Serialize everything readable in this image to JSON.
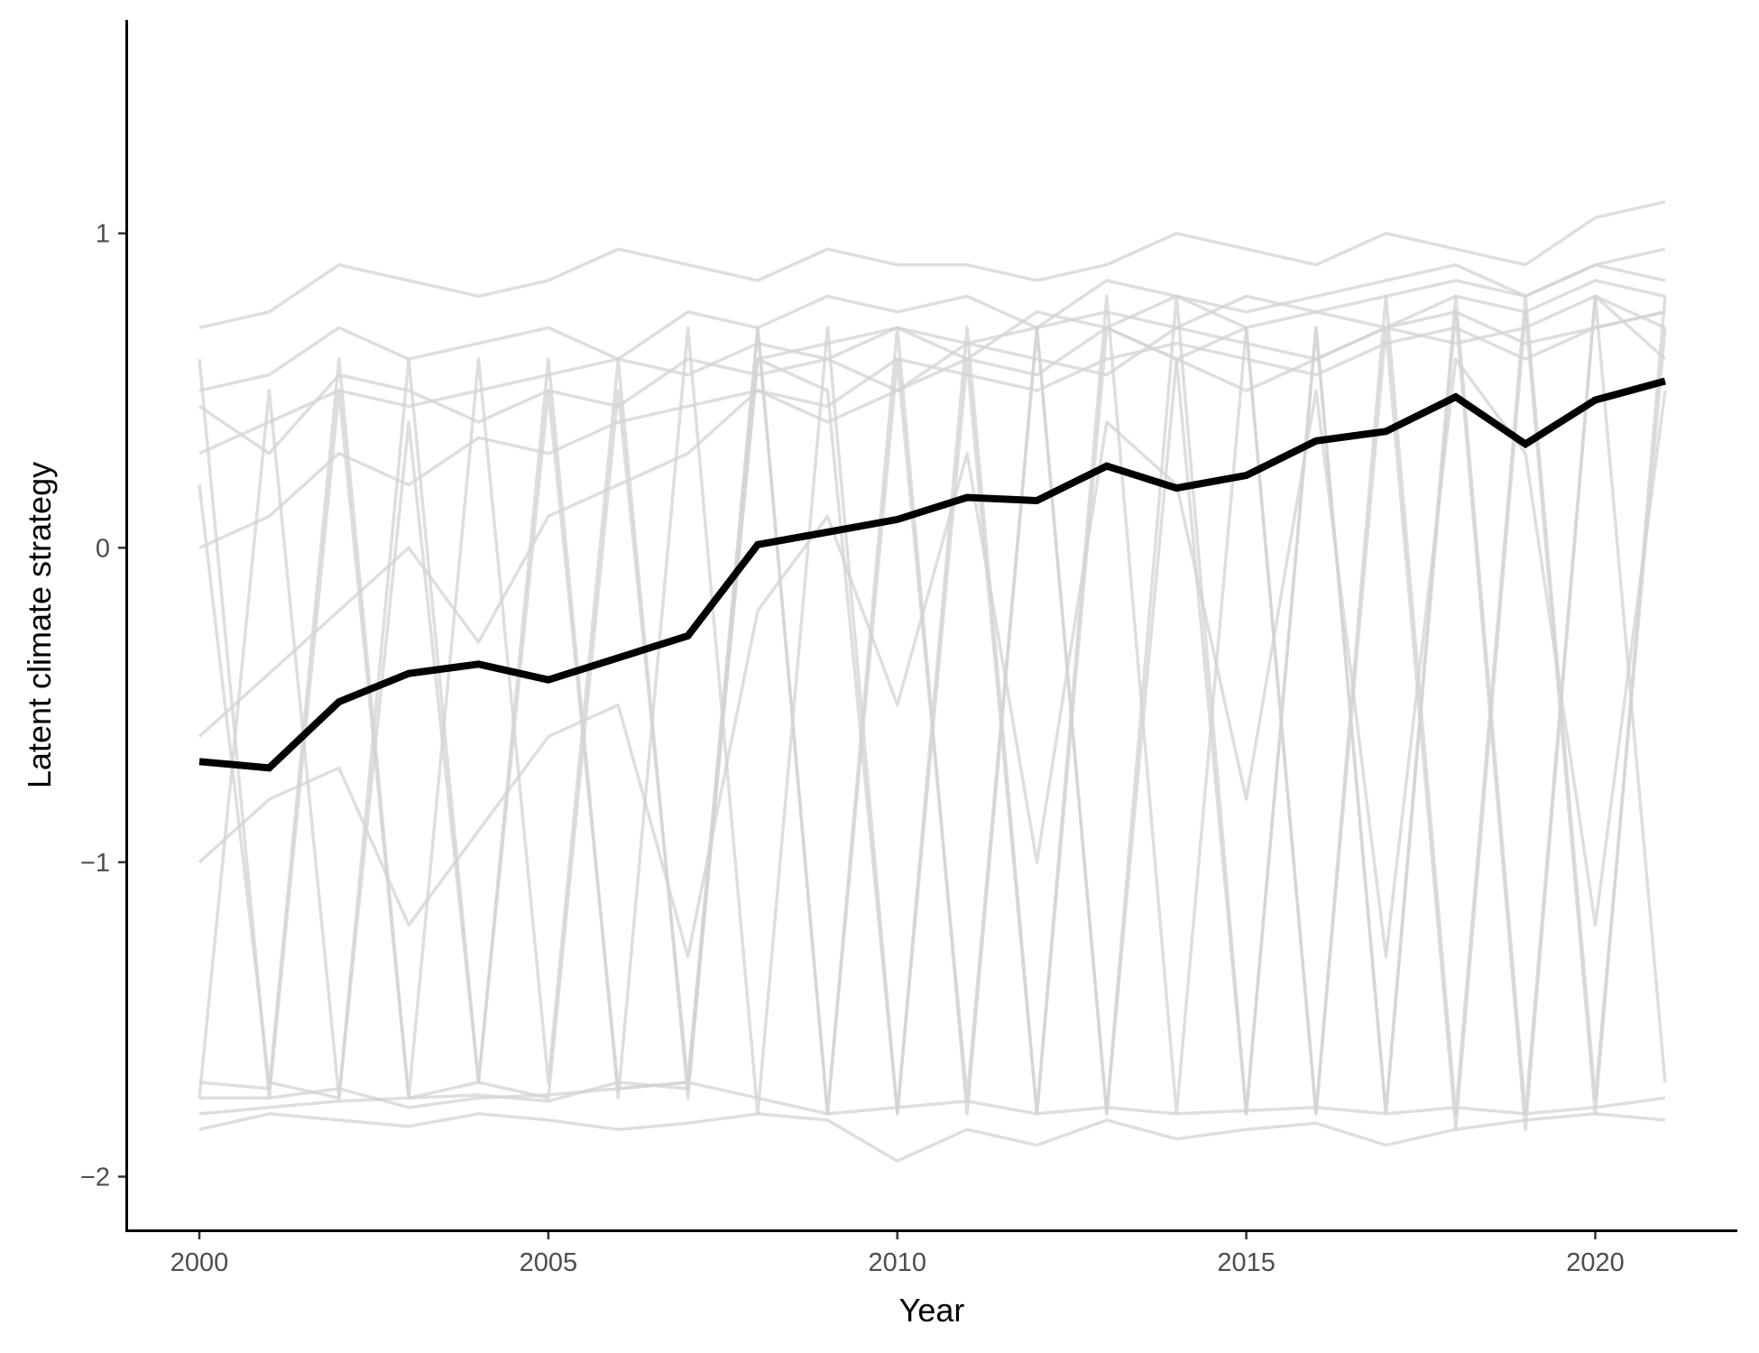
{
  "chart_data": {
    "type": "line",
    "title": "",
    "xlabel": "Year",
    "ylabel": "Latent climate strategy",
    "xlim": [
      1998.9,
      2022.2
    ],
    "ylim": [
      -2.17,
      1.68
    ],
    "x_ticks": [
      2000,
      2005,
      2010,
      2015,
      2020
    ],
    "x_tick_labels": [
      "2000",
      "2005",
      "2010",
      "2015",
      "2020"
    ],
    "y_ticks": [
      1,
      0,
      -1,
      -2
    ],
    "y_tick_labels": [
      "1",
      "0",
      "−1",
      "−2"
    ],
    "grid": false,
    "legend": "none",
    "x": [
      2000,
      2001,
      2002,
      2003,
      2004,
      2005,
      2006,
      2007,
      2008,
      2009,
      2010,
      2011,
      2012,
      2013,
      2014,
      2015,
      2016,
      2017,
      2018,
      2019,
      2020,
      2021
    ],
    "mean_series": {
      "color": "#000000",
      "values": [
        -0.68,
        -0.7,
        -0.49,
        -0.4,
        -0.37,
        -0.42,
        -0.35,
        -0.28,
        0.01,
        0.05,
        0.09,
        0.16,
        0.15,
        0.26,
        0.19,
        0.23,
        0.34,
        0.37,
        0.48,
        0.33,
        0.47,
        0.53
      ]
    },
    "individual_series_color": "#d3d3d3",
    "individual_series": [
      [
        0.5,
        0.55,
        0.7,
        0.6,
        0.65,
        0.7,
        0.6,
        0.75,
        0.7,
        0.8,
        0.75,
        0.8,
        0.7,
        0.85,
        0.8,
        0.75,
        0.8,
        0.85,
        0.9,
        0.8,
        0.9,
        0.95
      ],
      [
        0.3,
        0.4,
        0.5,
        0.45,
        0.5,
        0.55,
        0.6,
        0.55,
        0.65,
        0.6,
        0.7,
        0.65,
        0.7,
        0.75,
        0.7,
        0.8,
        0.75,
        0.7,
        0.8,
        0.75,
        0.85,
        0.8
      ],
      [
        0.6,
        -1.75,
        0.5,
        -1.75,
        0.6,
        -1.7,
        0.6,
        -1.75,
        0.7,
        -1.8,
        0.7,
        -1.8,
        0.7,
        -1.8,
        0.8,
        -1.8,
        0.7,
        -1.8,
        0.8,
        -1.8,
        0.8,
        -1.7
      ],
      [
        -1.75,
        0.5,
        -1.75,
        0.6,
        -1.7,
        0.6,
        -1.75,
        0.7,
        -1.8,
        0.7,
        -1.8,
        0.7,
        -1.8,
        0.8,
        -1.8,
        0.7,
        -1.8,
        0.8,
        -1.8,
        0.8,
        -1.75,
        0.7
      ],
      [
        -1.75,
        -1.75,
        -1.72,
        -1.78,
        -1.75,
        -1.74,
        -1.72,
        -1.7,
        -1.75,
        -1.8,
        -1.78,
        -1.76,
        -1.8,
        -1.78,
        -1.8,
        -1.79,
        -1.78,
        -1.8,
        -1.78,
        -1.8,
        -1.78,
        -1.75
      ],
      [
        -1.8,
        -1.78,
        -1.76,
        -1.75,
        -1.74,
        -1.76,
        -1.7,
        -1.72,
        0.6,
        0.65,
        0.7,
        0.6,
        0.75,
        0.7,
        0.8,
        0.7,
        0.75,
        0.8,
        0.85,
        0.8,
        0.9,
        0.85
      ],
      [
        0.0,
        0.1,
        0.3,
        0.2,
        0.35,
        0.3,
        0.4,
        0.45,
        0.5,
        0.45,
        0.6,
        0.55,
        0.5,
        0.6,
        0.65,
        0.6,
        0.55,
        0.65,
        0.7,
        0.6,
        0.7,
        0.75
      ],
      [
        -0.6,
        -0.4,
        -0.2,
        0.0,
        -0.3,
        0.1,
        0.2,
        0.3,
        0.5,
        0.4,
        0.5,
        0.6,
        0.55,
        0.7,
        0.6,
        0.5,
        0.6,
        0.7,
        0.65,
        0.7,
        0.8,
        0.6
      ],
      [
        0.7,
        0.75,
        0.9,
        0.85,
        0.8,
        0.85,
        0.95,
        0.9,
        0.85,
        0.95,
        0.9,
        0.9,
        0.85,
        0.9,
        1.0,
        0.95,
        0.9,
        1.0,
        0.95,
        0.9,
        1.05,
        1.1
      ],
      [
        0.2,
        -1.7,
        -1.75,
        0.4,
        -1.7,
        -1.75,
        0.5,
        -1.7,
        0.6,
        0.5,
        -1.8,
        0.6,
        -1.8,
        0.7,
        0.6,
        -1.8,
        0.7,
        -1.8,
        0.75,
        -1.85,
        0.8,
        0.7
      ],
      [
        -1.7,
        -1.72,
        0.6,
        -1.75,
        -1.7,
        0.5,
        -1.72,
        -1.7,
        0.7,
        -1.8,
        0.6,
        -1.75,
        0.7,
        -1.8,
        0.6,
        0.7,
        -1.8,
        0.7,
        -1.85,
        0.75,
        -1.8,
        0.8
      ],
      [
        0.45,
        0.3,
        0.55,
        0.5,
        0.4,
        0.5,
        0.45,
        0.6,
        0.55,
        0.6,
        0.5,
        0.65,
        0.6,
        0.55,
        0.7,
        0.65,
        0.6,
        0.7,
        0.75,
        0.65,
        0.7,
        0.75
      ],
      [
        -1.0,
        -0.8,
        -0.7,
        -1.2,
        -0.9,
        -0.6,
        -0.5,
        -1.3,
        -0.2,
        0.1,
        -0.5,
        0.3,
        -1.0,
        0.4,
        0.2,
        -0.8,
        0.5,
        -1.3,
        0.6,
        0.3,
        -1.2,
        0.5
      ],
      [
        -1.85,
        -1.8,
        -1.82,
        -1.84,
        -1.8,
        -1.82,
        -1.85,
        -1.83,
        -1.8,
        -1.82,
        -1.95,
        -1.85,
        -1.9,
        -1.82,
        -1.88,
        -1.85,
        -1.83,
        -1.9,
        -1.85,
        -1.82,
        -1.8,
        -1.82
      ]
    ]
  }
}
